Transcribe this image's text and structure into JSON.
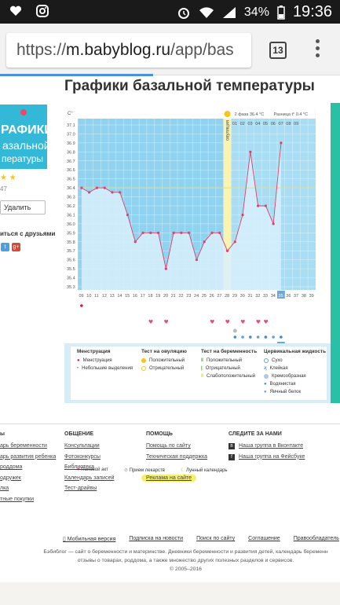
{
  "status_bar": {
    "time": "19:36",
    "battery": "34%"
  },
  "browser": {
    "url_scheme": "https://",
    "url_host": "m.babyblog.ru",
    "url_path": "/app/bas",
    "tab_count": "13"
  },
  "page": {
    "title": "Графики базальной температуры"
  },
  "promo": {
    "line1": "РАФИКИ",
    "line2": "азальной",
    "line3": "пературы"
  },
  "app_meta": {
    "stars": "★ ★",
    "count": "47",
    "delete_label": "Удалить",
    "share_label": "иться с друзьями"
  },
  "chart": {
    "header_unit": "С°",
    "phase_label": "2 фаза 36.4 °С",
    "diff_label": "Разница t° 0.4 °С",
    "ovulation_label": "овуляция",
    "y_ticks": [
      "37.1",
      "37.0",
      "36.9",
      "36.8",
      "36.7",
      "36.6",
      "36.5",
      "36.4",
      "36.3",
      "36.2",
      "36.1",
      "36.0",
      "35.9",
      "35.8",
      "35.7",
      "35.6",
      "35.5",
      "35.4",
      "35.3"
    ],
    "day_numbers": [
      "09",
      "10",
      "11",
      "12",
      "13",
      "14",
      "15",
      "16",
      "17",
      "18",
      "19",
      "20",
      "21",
      "22",
      "23",
      "24",
      "25",
      "26",
      "27",
      "28",
      "29",
      "30",
      "31",
      "32",
      "33",
      "34",
      "35",
      "36",
      "37",
      "38",
      "39"
    ],
    "top_days": [
      "01",
      "02",
      "03",
      "04",
      "05",
      "06",
      "07",
      "08",
      "09"
    ],
    "dates": [
      "25",
      "26",
      "27",
      "28",
      "29",
      "30",
      "31",
      "01",
      "02",
      "03",
      "04",
      "05",
      "06",
      "07",
      "08",
      "09",
      "10",
      "11",
      "12",
      "13",
      "14",
      "15",
      "16",
      "17",
      "18",
      "19",
      "20",
      "21",
      "22",
      "23",
      "24"
    ],
    "month_label": "Сентябрь",
    "highlight_day": "35"
  },
  "chart_data": {
    "type": "line",
    "title": "Графики базальной температуры",
    "x": [
      9,
      10,
      11,
      12,
      13,
      14,
      15,
      16,
      17,
      18,
      19,
      20,
      21,
      22,
      23,
      24,
      25,
      26,
      27,
      28,
      29,
      30,
      31,
      32,
      33,
      34,
      35
    ],
    "values": [
      36.4,
      36.35,
      36.4,
      36.4,
      36.35,
      36.35,
      36.1,
      35.8,
      35.9,
      35.9,
      35.9,
      35.5,
      35.9,
      35.9,
      35.9,
      35.6,
      35.8,
      35.9,
      35.9,
      35.7,
      35.8,
      36.1,
      36.8,
      36.2,
      36.2,
      36.0,
      36.9
    ],
    "ylim": [
      35.3,
      37.1
    ],
    "coverline": 36.4
  },
  "legend": {
    "col1_title": "Менструация",
    "col1_items": [
      "Менструация",
      "Небольшие выделения"
    ],
    "col2_title": "Тест на овуляцию",
    "col2_items": [
      "Положительный",
      "Отрицательный"
    ],
    "col3_title": "Тест на беременность",
    "col3_items": [
      "Положительный",
      "Отрицательный",
      "Слабоположительный"
    ],
    "col4_title": "Цервикальная жидкость",
    "col4_items": [
      "Сухо",
      "Клейкая",
      "Кремообразная",
      "Водянистая",
      "Яичный белок"
    ],
    "bottom": [
      "Половой акт",
      "Прием лекарств",
      "Лунный календарь"
    ]
  },
  "footer": {
    "col1_title": "ы",
    "col1_links": [
      "арь беременности",
      "арь развития ребенка",
      "роддома",
      "одружек",
      "лка",
      "тные покупки"
    ],
    "col2_title": "ОБЩЕНИЕ",
    "col2_links": [
      "Консультации",
      "Фотоконкурсы",
      "Библиотека",
      "Календарь записей",
      "Тест-драйвы"
    ],
    "col3_title": "ПОМОЩЬ",
    "col3_links": [
      "Помощь по сайту",
      "Техническая поддержка"
    ],
    "ad_link": "Реклама на сайте",
    "col4_title": "СЛЕДИТЕ ЗА НАМИ",
    "col4_links": [
      "Наша группа в Вконтакте",
      "Наша группа на Фейсбуке"
    ],
    "bottom_links": [
      "Мобильная версия",
      "Подписка на новости",
      "Поиск по сайту",
      "Соглашение",
      "Правообладатель"
    ],
    "copy1": "Бэбиблог — сайт о беременности и материнстве. Дневники беременности и развития детей, календарь беременн",
    "copy2": "отзывы о товарах, роддома, а также множество других полезных разделов и сервисов.",
    "copy3": "© 2005–2016"
  }
}
